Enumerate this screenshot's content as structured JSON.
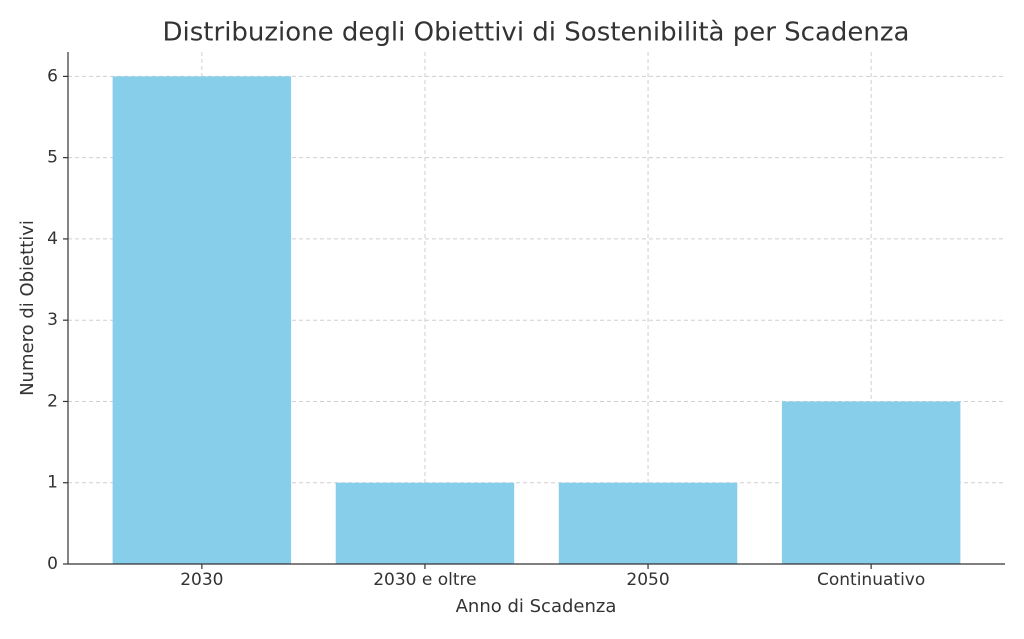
{
  "chart_data": {
    "type": "bar",
    "title": "Distribuzione degli Obiettivi di Sostenibilità per Scadenza",
    "x_label": "Anno di Scadenza",
    "y_label": "Numero di Obiettivi",
    "categories": [
      "2030",
      "2030 e oltre",
      "2050",
      "Continuativo"
    ],
    "values": [
      6,
      1,
      1,
      2
    ],
    "color": "#87ceeb",
    "ylim": [
      0,
      6.3
    ],
    "yticks": [
      0,
      1,
      2,
      3,
      4,
      5,
      6
    ],
    "grid": true
  }
}
